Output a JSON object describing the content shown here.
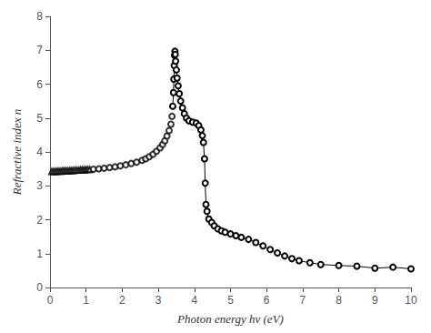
{
  "chart_data": {
    "type": "scatter",
    "xlabel": "Photon energy hv (eV)",
    "ylabel": "Refractive index n",
    "xlim": [
      0,
      10
    ],
    "ylim": [
      0,
      8
    ],
    "xticks": [
      0,
      1,
      2,
      3,
      4,
      5,
      6,
      7,
      8,
      9,
      10
    ],
    "yticks": [
      0,
      1,
      2,
      3,
      4,
      5,
      6,
      7,
      8
    ],
    "grid": false,
    "series": [
      {
        "type": "scatter",
        "marker": "triangle",
        "color": "#000000",
        "x": [
          0.05,
          0.1,
          0.15,
          0.2,
          0.25,
          0.3,
          0.35,
          0.4,
          0.45,
          0.5,
          0.55,
          0.6,
          0.65,
          0.7,
          0.75,
          0.8,
          0.85,
          0.9,
          0.95,
          1.0,
          1.05,
          1.1
        ],
        "values": [
          3.42,
          3.42,
          3.42,
          3.43,
          3.43,
          3.43,
          3.44,
          3.44,
          3.44,
          3.44,
          3.45,
          3.45,
          3.45,
          3.46,
          3.46,
          3.46,
          3.47,
          3.47,
          3.47,
          3.48,
          3.48,
          3.48
        ]
      },
      {
        "type": "scatter",
        "marker": "circle",
        "color": "#000000",
        "x": [
          1.2,
          1.35,
          1.5,
          1.65,
          1.8,
          1.95,
          2.1,
          2.25,
          2.4,
          2.55,
          2.65,
          2.75,
          2.85,
          2.95,
          3.05,
          3.12,
          3.18,
          3.24,
          3.3,
          3.35,
          3.38
        ],
        "values": [
          3.49,
          3.5,
          3.52,
          3.54,
          3.56,
          3.59,
          3.62,
          3.66,
          3.7,
          3.75,
          3.8,
          3.86,
          3.93,
          4.02,
          4.12,
          4.22,
          4.33,
          4.47,
          4.63,
          4.82,
          5.05
        ]
      },
      {
        "type": "line",
        "marker": "circle",
        "line_style": "solid",
        "color": "#000000",
        "x": [
          3.4,
          3.42,
          3.43,
          3.44,
          3.45,
          3.46,
          3.47,
          3.48,
          3.5,
          3.52,
          3.55,
          3.58,
          3.62,
          3.67,
          3.72,
          3.78,
          3.85,
          3.95,
          4.05,
          4.12,
          4.18,
          4.22,
          4.25,
          4.28,
          4.3,
          4.32,
          4.35,
          4.4,
          4.48,
          4.55,
          4.65,
          4.75,
          4.85,
          5.0,
          5.15,
          5.3,
          5.5,
          5.7,
          5.9,
          6.1,
          6.3,
          6.5,
          6.7,
          6.9,
          7.2,
          7.5,
          8.0,
          8.5,
          9.0,
          9.5,
          10.0
        ],
        "values": [
          5.35,
          5.75,
          6.15,
          6.55,
          6.85,
          6.97,
          6.88,
          6.68,
          6.42,
          6.18,
          5.95,
          5.72,
          5.5,
          5.3,
          5.13,
          5.0,
          4.92,
          4.88,
          4.85,
          4.78,
          4.65,
          4.48,
          4.28,
          3.8,
          3.08,
          2.45,
          2.25,
          2.02,
          1.92,
          1.82,
          1.73,
          1.67,
          1.63,
          1.58,
          1.53,
          1.48,
          1.42,
          1.33,
          1.23,
          1.12,
          1.02,
          0.93,
          0.85,
          0.79,
          0.73,
          0.68,
          0.65,
          0.63,
          0.57,
          0.6,
          0.55
        ]
      }
    ]
  }
}
